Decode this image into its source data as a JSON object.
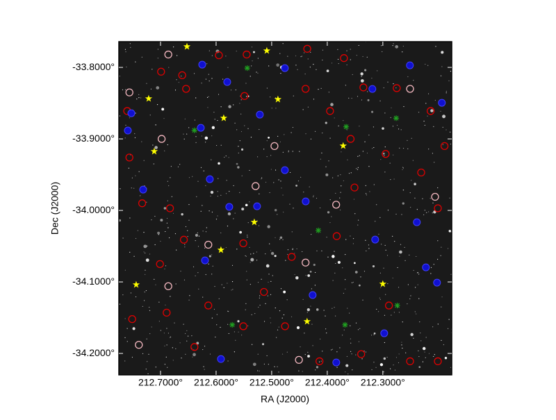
{
  "chart_data": {
    "type": "scatter",
    "xlabel": "RA (J2000)",
    "ylabel": "Dec (J2000)",
    "xlim": [
      212.775,
      212.176
    ],
    "ylim": [
      -34.23,
      -33.764
    ],
    "xticks": [
      {
        "value": 212.7,
        "label": "212.7000°"
      },
      {
        "value": 212.6,
        "label": "212.6000°"
      },
      {
        "value": 212.5,
        "label": "212.5000°"
      },
      {
        "value": 212.4,
        "label": "212.4000°"
      },
      {
        "value": 212.3,
        "label": "212.3000°"
      }
    ],
    "yticks": [
      {
        "value": -33.8,
        "label": "-33.8000°"
      },
      {
        "value": -33.9,
        "label": "-33.9000°"
      },
      {
        "value": -34.0,
        "label": "-34.0000°"
      },
      {
        "value": -34.1,
        "label": "-34.1000°"
      },
      {
        "value": -34.2,
        "label": "-34.2000°"
      }
    ],
    "background": "#1a1a1a",
    "series": [
      {
        "color": "#e00000",
        "marker": "ring",
        "x": [
          212.76,
          212.756,
          212.699,
          212.661,
          212.595,
          212.545,
          212.436,
          212.37,
          212.335,
          212.275,
          212.214,
          212.189,
          212.231,
          212.295,
          212.358,
          212.395,
          212.439,
          212.549,
          212.654,
          212.733,
          212.683,
          212.658,
          212.551,
          212.464,
          212.383,
          212.289,
          212.339,
          212.476,
          212.551,
          212.689,
          212.751,
          212.639,
          212.201,
          212.251,
          212.414,
          212.514,
          212.614,
          212.701,
          212.201,
          212.351
        ],
        "y": [
          -33.861,
          -33.926,
          -33.806,
          -33.811,
          -33.783,
          -33.782,
          -33.774,
          -33.787,
          -33.828,
          -33.829,
          -33.861,
          -33.91,
          -33.947,
          -33.921,
          -33.9,
          -33.861,
          -33.83,
          -33.84,
          -33.83,
          -33.99,
          -33.997,
          -34.041,
          -34.046,
          -34.065,
          -34.036,
          -34.133,
          -34.201,
          -34.162,
          -34.162,
          -34.143,
          -34.152,
          -34.191,
          -34.211,
          -34.211,
          -34.211,
          -34.114,
          -34.133,
          -34.075,
          -33.997,
          -33.968
        ]
      },
      {
        "color": "#f4b8c0",
        "marker": "ring",
        "x": [
          212.686,
          212.756,
          212.698,
          212.495,
          212.529,
          212.384,
          212.614,
          212.439,
          212.686,
          212.739,
          212.451,
          212.251,
          212.206
        ],
        "y": [
          -33.782,
          -33.835,
          -33.9,
          -33.91,
          -33.966,
          -33.992,
          -34.048,
          -34.073,
          -34.106,
          -34.188,
          -34.209,
          -33.83,
          -33.981
        ]
      },
      {
        "color": "#1010d0",
        "marker": "dot",
        "x": [
          212.7588,
          212.7525,
          212.625,
          212.58,
          212.4763,
          212.3188,
          212.2513,
          212.1938,
          212.6275,
          212.5213,
          212.6113,
          212.4388,
          212.5763,
          212.5263,
          212.7313,
          212.3138,
          212.2225,
          212.2025,
          212.4263,
          212.2975,
          212.3838,
          212.5913,
          212.62,
          212.4763,
          212.2388
        ],
        "y": [
          -33.8883,
          -33.8641,
          -33.7961,
          -33.8204,
          -33.801,
          -33.8301,
          -33.7971,
          -33.8495,
          -33.8845,
          -33.866,
          -33.9563,
          -33.9874,
          -33.9951,
          -33.9942,
          -33.9709,
          -34.0408,
          -34.0796,
          -34.101,
          -34.1184,
          -34.1718,
          -34.2126,
          -34.2078,
          -34.0699,
          -33.9437,
          -34.0165
        ]
      },
      {
        "color": "#20a020",
        "marker": "cross",
        "x": [
          212.544,
          212.639,
          212.366,
          212.276,
          212.416,
          212.571,
          212.368,
          212.274
        ],
        "y": [
          -33.801,
          -33.888,
          -33.883,
          -33.871,
          -34.028,
          -34.16,
          -34.16,
          -34.133
        ]
      },
      {
        "color": "#ffff00",
        "marker": "star",
        "x": [
          212.6525,
          212.5088,
          212.7213,
          212.4888,
          212.5863,
          212.7113,
          212.3713,
          212.5313,
          212.5913,
          212.7438,
          212.3,
          212.4363
        ],
        "y": [
          -33.7709,
          -33.7767,
          -33.8437,
          -33.8447,
          -33.8709,
          -33.9175,
          -33.9097,
          -34.0165,
          -34.0553,
          -34.1039,
          -34.1029,
          -34.1553
        ]
      }
    ]
  }
}
